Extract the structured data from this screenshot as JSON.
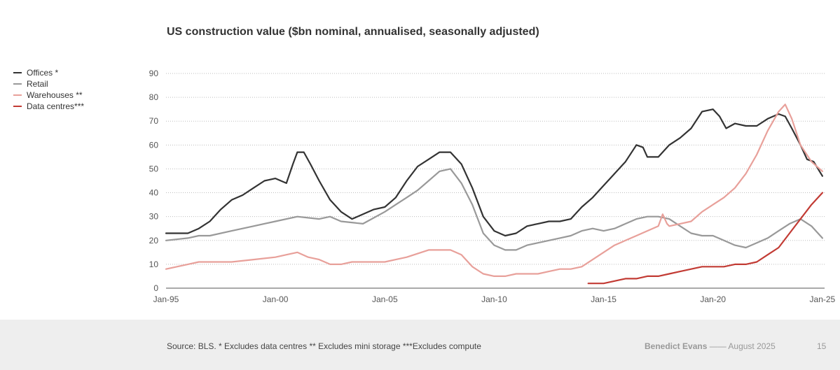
{
  "chart_data": {
    "type": "line",
    "title": "US construction value ($bn nominal, annualised, seasonally adjusted)",
    "xlabel": "",
    "ylabel": "",
    "xlim": [
      1995,
      2025.1
    ],
    "ylim": [
      0,
      90
    ],
    "y_ticks": [
      0,
      10,
      20,
      30,
      40,
      50,
      60,
      70,
      80,
      90
    ],
    "x_tick_labels": [
      {
        "x": 1995,
        "label": "Jan-95"
      },
      {
        "x": 2000,
        "label": "Jan-00"
      },
      {
        "x": 2005,
        "label": "Jan-05"
      },
      {
        "x": 2010,
        "label": "Jan-10"
      },
      {
        "x": 2015,
        "label": "Jan-15"
      },
      {
        "x": 2020,
        "label": "Jan-20"
      },
      {
        "x": 2025,
        "label": "Jan-25"
      }
    ],
    "grid": "horizontal dotted",
    "legend_position": "top-left",
    "series": [
      {
        "name": "Offices *",
        "color": "#333333",
        "points": [
          [
            1995.0,
            23
          ],
          [
            1995.5,
            23
          ],
          [
            1996.0,
            23
          ],
          [
            1996.5,
            25
          ],
          [
            1997.0,
            28
          ],
          [
            1997.5,
            33
          ],
          [
            1998.0,
            37
          ],
          [
            1998.5,
            39
          ],
          [
            1999.0,
            42
          ],
          [
            1999.5,
            45
          ],
          [
            2000.0,
            46
          ],
          [
            2000.5,
            44
          ],
          [
            2000.8,
            52
          ],
          [
            2001.0,
            57
          ],
          [
            2001.3,
            57
          ],
          [
            2001.6,
            52
          ],
          [
            2002.0,
            45
          ],
          [
            2002.5,
            37
          ],
          [
            2003.0,
            32
          ],
          [
            2003.5,
            29
          ],
          [
            2004.0,
            31
          ],
          [
            2004.5,
            33
          ],
          [
            2005.0,
            34
          ],
          [
            2005.5,
            38
          ],
          [
            2006.0,
            45
          ],
          [
            2006.5,
            51
          ],
          [
            2007.0,
            54
          ],
          [
            2007.5,
            57
          ],
          [
            2008.0,
            57
          ],
          [
            2008.5,
            52
          ],
          [
            2009.0,
            42
          ],
          [
            2009.5,
            30
          ],
          [
            2010.0,
            24
          ],
          [
            2010.5,
            22
          ],
          [
            2011.0,
            23
          ],
          [
            2011.5,
            26
          ],
          [
            2012.0,
            27
          ],
          [
            2012.5,
            28
          ],
          [
            2013.0,
            28
          ],
          [
            2013.5,
            29
          ],
          [
            2014.0,
            34
          ],
          [
            2014.5,
            38
          ],
          [
            2015.0,
            43
          ],
          [
            2015.5,
            48
          ],
          [
            2016.0,
            53
          ],
          [
            2016.5,
            60
          ],
          [
            2016.8,
            59
          ],
          [
            2017.0,
            55
          ],
          [
            2017.5,
            55
          ],
          [
            2018.0,
            60
          ],
          [
            2018.5,
            63
          ],
          [
            2019.0,
            67
          ],
          [
            2019.5,
            74
          ],
          [
            2020.0,
            75
          ],
          [
            2020.3,
            72
          ],
          [
            2020.6,
            67
          ],
          [
            2021.0,
            69
          ],
          [
            2021.5,
            68
          ],
          [
            2022.0,
            68
          ],
          [
            2022.5,
            71
          ],
          [
            2023.0,
            73
          ],
          [
            2023.3,
            72
          ],
          [
            2023.6,
            67
          ],
          [
            2024.0,
            60
          ],
          [
            2024.3,
            54
          ],
          [
            2024.6,
            53
          ],
          [
            2025.0,
            47
          ]
        ]
      },
      {
        "name": "Retail",
        "color": "#999999",
        "points": [
          [
            1995.0,
            20
          ],
          [
            1996.0,
            21
          ],
          [
            1996.5,
            22
          ],
          [
            1997.0,
            22
          ],
          [
            1998.0,
            24
          ],
          [
            1999.0,
            26
          ],
          [
            2000.0,
            28
          ],
          [
            2001.0,
            30
          ],
          [
            2002.0,
            29
          ],
          [
            2002.5,
            30
          ],
          [
            2003.0,
            28
          ],
          [
            2004.0,
            27
          ],
          [
            2005.0,
            32
          ],
          [
            2005.5,
            35
          ],
          [
            2006.0,
            38
          ],
          [
            2006.5,
            41
          ],
          [
            2007.0,
            45
          ],
          [
            2007.5,
            49
          ],
          [
            2008.0,
            50
          ],
          [
            2008.5,
            44
          ],
          [
            2009.0,
            35
          ],
          [
            2009.5,
            23
          ],
          [
            2010.0,
            18
          ],
          [
            2010.5,
            16
          ],
          [
            2011.0,
            16
          ],
          [
            2011.5,
            18
          ],
          [
            2012.0,
            19
          ],
          [
            2012.5,
            20
          ],
          [
            2013.0,
            21
          ],
          [
            2013.5,
            22
          ],
          [
            2014.0,
            24
          ],
          [
            2014.5,
            25
          ],
          [
            2015.0,
            24
          ],
          [
            2015.5,
            25
          ],
          [
            2016.0,
            27
          ],
          [
            2016.5,
            29
          ],
          [
            2017.0,
            30
          ],
          [
            2017.5,
            30
          ],
          [
            2018.0,
            29
          ],
          [
            2018.5,
            26
          ],
          [
            2019.0,
            23
          ],
          [
            2019.5,
            22
          ],
          [
            2020.0,
            22
          ],
          [
            2020.5,
            20
          ],
          [
            2021.0,
            18
          ],
          [
            2021.5,
            17
          ],
          [
            2022.0,
            19
          ],
          [
            2022.5,
            21
          ],
          [
            2023.0,
            24
          ],
          [
            2023.5,
            27
          ],
          [
            2024.0,
            29
          ],
          [
            2024.5,
            26
          ],
          [
            2025.0,
            21
          ]
        ]
      },
      {
        "name": "Warehouses **",
        "color": "#e8a09a",
        "points": [
          [
            1995.0,
            8
          ],
          [
            1995.5,
            9
          ],
          [
            1996.0,
            10
          ],
          [
            1996.5,
            11
          ],
          [
            1997.0,
            11
          ],
          [
            1998.0,
            11
          ],
          [
            1999.0,
            12
          ],
          [
            2000.0,
            13
          ],
          [
            2000.5,
            14
          ],
          [
            2001.0,
            15
          ],
          [
            2001.5,
            13
          ],
          [
            2002.0,
            12
          ],
          [
            2002.5,
            10
          ],
          [
            2003.0,
            10
          ],
          [
            2003.5,
            11
          ],
          [
            2004.0,
            11
          ],
          [
            2005.0,
            11
          ],
          [
            2005.5,
            12
          ],
          [
            2006.0,
            13
          ],
          [
            2007.0,
            16
          ],
          [
            2007.5,
            16
          ],
          [
            2008.0,
            16
          ],
          [
            2008.5,
            14
          ],
          [
            2009.0,
            9
          ],
          [
            2009.5,
            6
          ],
          [
            2010.0,
            5
          ],
          [
            2010.5,
            5
          ],
          [
            2011.0,
            6
          ],
          [
            2011.5,
            6
          ],
          [
            2012.0,
            6
          ],
          [
            2012.5,
            7
          ],
          [
            2013.0,
            8
          ],
          [
            2013.5,
            8
          ],
          [
            2014.0,
            9
          ],
          [
            2014.5,
            12
          ],
          [
            2015.0,
            15
          ],
          [
            2015.5,
            18
          ],
          [
            2016.0,
            20
          ],
          [
            2016.5,
            22
          ],
          [
            2017.0,
            24
          ],
          [
            2017.5,
            26
          ],
          [
            2017.7,
            31
          ],
          [
            2017.9,
            27
          ],
          [
            2018.0,
            26
          ],
          [
            2018.5,
            27
          ],
          [
            2019.0,
            28
          ],
          [
            2019.5,
            32
          ],
          [
            2020.0,
            35
          ],
          [
            2020.5,
            38
          ],
          [
            2021.0,
            42
          ],
          [
            2021.5,
            48
          ],
          [
            2022.0,
            56
          ],
          [
            2022.5,
            66
          ],
          [
            2023.0,
            74
          ],
          [
            2023.3,
            77
          ],
          [
            2023.6,
            71
          ],
          [
            2024.0,
            60
          ],
          [
            2024.5,
            53
          ],
          [
            2025.0,
            49
          ]
        ]
      },
      {
        "name": "Data centres***",
        "color": "#c23b34",
        "points": [
          [
            2014.3,
            2
          ],
          [
            2015.0,
            2
          ],
          [
            2015.5,
            3
          ],
          [
            2016.0,
            4
          ],
          [
            2016.5,
            4
          ],
          [
            2017.0,
            5
          ],
          [
            2017.5,
            5
          ],
          [
            2018.0,
            6
          ],
          [
            2018.5,
            7
          ],
          [
            2019.0,
            8
          ],
          [
            2019.5,
            9
          ],
          [
            2020.0,
            9
          ],
          [
            2020.5,
            9
          ],
          [
            2021.0,
            10
          ],
          [
            2021.5,
            10
          ],
          [
            2022.0,
            11
          ],
          [
            2022.5,
            14
          ],
          [
            2023.0,
            17
          ],
          [
            2023.5,
            23
          ],
          [
            2024.0,
            29
          ],
          [
            2024.5,
            35
          ],
          [
            2025.0,
            40
          ]
        ]
      }
    ]
  },
  "footer": {
    "source": "Source: BLS. * Excludes data centres ** Excludes mini storage ***Excludes compute",
    "author": "Benedict Evans",
    "separator": "——",
    "date": "August 2025",
    "page_number": "15"
  }
}
